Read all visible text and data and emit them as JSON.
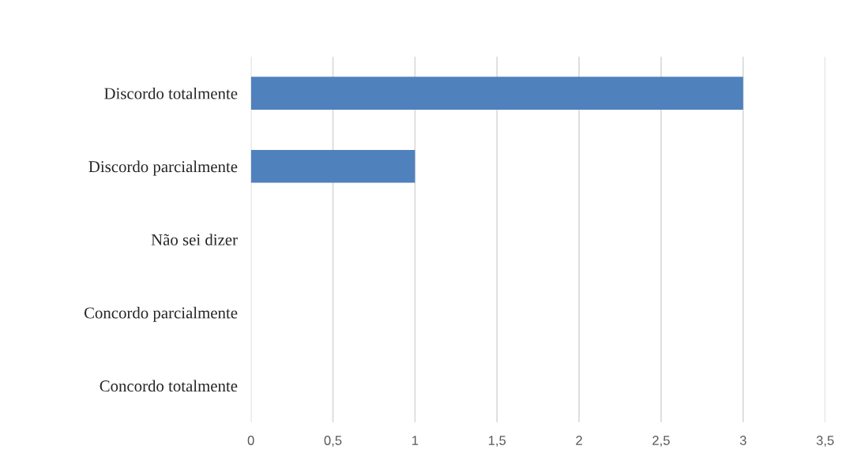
{
  "chart_data": {
    "type": "bar",
    "orientation": "horizontal",
    "categories": [
      "Discordo totalmente",
      "Discordo parcialmente",
      "Não sei dizer",
      "Concordo parcialmente",
      "Concordo totalmente"
    ],
    "values": [
      3,
      1,
      0,
      0,
      0
    ],
    "color": "#4f81bd",
    "xlim": [
      0,
      3.5
    ],
    "xticks": [
      0,
      {
        "value": 0.5,
        "label": "0,5"
      },
      1,
      {
        "value": 1.5,
        "label": "1,5"
      },
      2,
      {
        "value": 2.5,
        "label": "2,5"
      },
      3,
      {
        "value": 3.5,
        "label": "3,5"
      }
    ],
    "grid": "x"
  }
}
